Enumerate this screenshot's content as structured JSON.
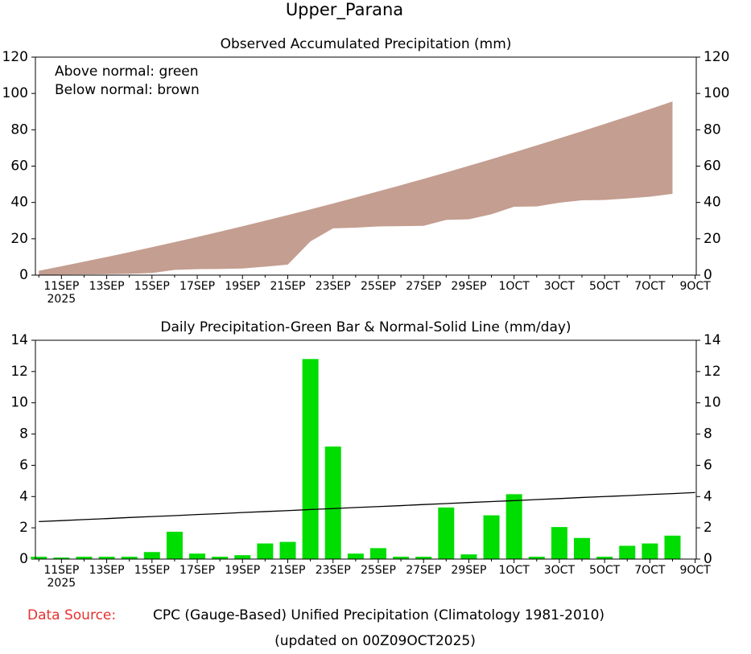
{
  "page_title": "Upper_Parana",
  "footer": {
    "source_label": "Data Source:",
    "source": "CPC (Gauge-Based) Unified Precipitation (Climatology 1981-2010)",
    "updated": "(updated on 00Z09OCT2025)"
  },
  "chart_data": [
    {
      "type": "area",
      "title": "Observed Accumulated Precipitation (mm)",
      "annotations": [
        "Above normal: green",
        "Below normal: brown"
      ],
      "categories": [
        null,
        "11SEP",
        null,
        "13SEP",
        null,
        "15SEP",
        null,
        "17SEP",
        null,
        "19SEP",
        null,
        "21SEP",
        null,
        "23SEP",
        null,
        "25SEP",
        null,
        "27SEP",
        null,
        "29SEP",
        null,
        "1OCT",
        null,
        "3OCT",
        null,
        "5OCT",
        null,
        "7OCT",
        null,
        "9OCT"
      ],
      "year_label": "2025",
      "series": [
        {
          "name": "Normal",
          "values": [
            2.4,
            4.86,
            7.39,
            9.98,
            12.64,
            15.36,
            18.14,
            20.99,
            23.9,
            26.88,
            29.92,
            33.02,
            36.19,
            39.42,
            42.72,
            46.08,
            49.5,
            52.99,
            56.54,
            60.16,
            63.84,
            67.58,
            71.39,
            75.26,
            79.2,
            83.2,
            87.26,
            91.39,
            95.58,
            99.84
          ]
        },
        {
          "name": "Observed",
          "values": [
            0.15,
            0.25,
            0.4,
            0.55,
            0.7,
            1.15,
            2.9,
            3.25,
            3.4,
            3.65,
            4.65,
            5.75,
            18.55,
            25.75,
            26.1,
            26.8,
            26.95,
            27.1,
            30.4,
            30.7,
            33.5,
            37.65,
            37.8,
            39.85,
            41.2,
            41.35,
            42.2,
            43.2,
            44.7,
            null
          ]
        }
      ],
      "below_color": "#c49e90",
      "above_color": "#00dd00",
      "ylim": [
        0,
        120
      ],
      "yticks": [
        0,
        20,
        40,
        60,
        80,
        100,
        120
      ]
    },
    {
      "type": "bar_line",
      "title": "Daily Precipitation-Green Bar & Normal-Solid Line (mm/day)",
      "categories": [
        null,
        "11SEP",
        null,
        "13SEP",
        null,
        "15SEP",
        null,
        "17SEP",
        null,
        "19SEP",
        null,
        "21SEP",
        null,
        "23SEP",
        null,
        "25SEP",
        null,
        "27SEP",
        null,
        "29SEP",
        null,
        "1OCT",
        null,
        "3OCT",
        null,
        "5OCT",
        null,
        "7OCT",
        null,
        "9OCT"
      ],
      "year_label": "2025",
      "series": [
        {
          "name": "Daily Precipitation",
          "kind": "bar",
          "color": "#00dd00",
          "values": [
            0.15,
            0.1,
            0.15,
            0.15,
            0.15,
            0.45,
            1.75,
            0.35,
            0.15,
            0.25,
            1.0,
            1.1,
            12.8,
            7.2,
            0.35,
            0.7,
            0.15,
            0.15,
            3.3,
            0.3,
            2.8,
            4.15,
            0.15,
            2.05,
            1.35,
            0.15,
            0.85,
            1.0,
            1.5,
            null
          ]
        },
        {
          "name": "Normal",
          "kind": "line",
          "color": "#000000",
          "values": [
            2.4,
            2.46,
            2.53,
            2.59,
            2.66,
            2.72,
            2.78,
            2.85,
            2.91,
            2.98,
            3.04,
            3.1,
            3.17,
            3.23,
            3.3,
            3.36,
            3.42,
            3.49,
            3.55,
            3.62,
            3.68,
            3.74,
            3.81,
            3.87,
            3.94,
            4.0,
            4.06,
            4.13,
            4.19,
            4.26
          ]
        }
      ],
      "ylim": [
        0,
        14
      ],
      "yticks": [
        0,
        2,
        4,
        6,
        8,
        10,
        12,
        14
      ]
    }
  ]
}
